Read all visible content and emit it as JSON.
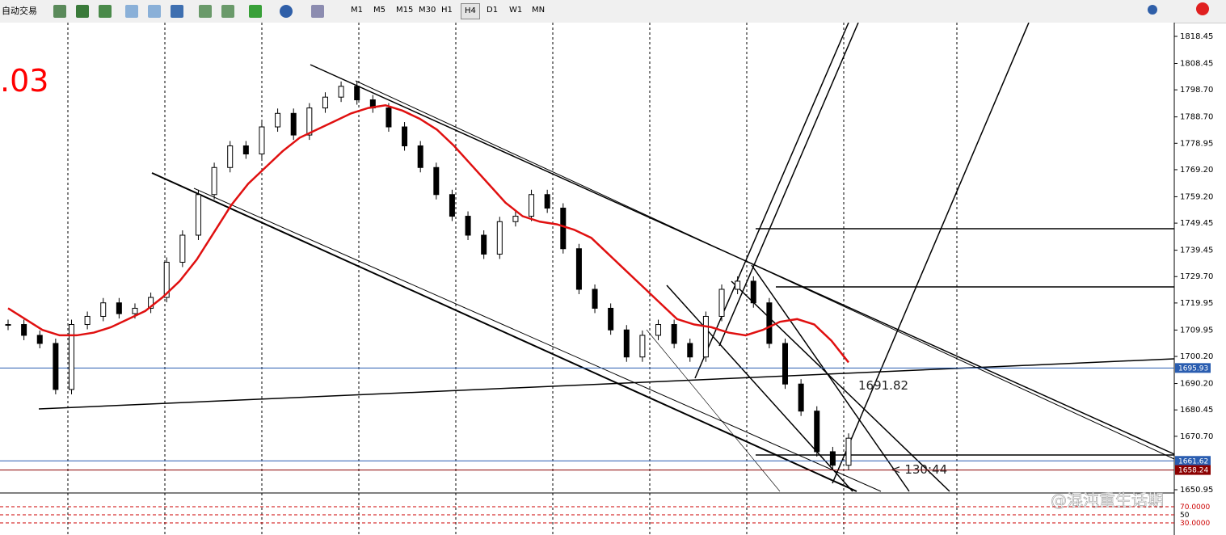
{
  "toolbar": {
    "autotrade": "自动交易",
    "timeframes": [
      "M1",
      "M5",
      "M15",
      "M30",
      "H1",
      "H4",
      "D1",
      "W1",
      "MN"
    ],
    "active": "H4"
  },
  "chart": {
    "ylim": [
      1650.95,
      1818.45
    ],
    "price_ticks": [
      {
        "value": 1818.45,
        "label": "1818.45"
      },
      {
        "value": 1808.45,
        "label": "1808.45"
      },
      {
        "value": 1798.7,
        "label": "1798.70"
      },
      {
        "value": 1788.7,
        "label": "1788.70"
      },
      {
        "value": 1778.95,
        "label": "1778.95"
      },
      {
        "value": 1769.2,
        "label": "1769.20"
      },
      {
        "value": 1759.2,
        "label": "1759.20"
      },
      {
        "value": 1749.45,
        "label": "1749.45"
      },
      {
        "value": 1739.45,
        "label": "1739.45"
      },
      {
        "value": 1729.7,
        "label": "1729.70"
      },
      {
        "value": 1719.95,
        "label": "1719.95"
      },
      {
        "value": 1709.95,
        "label": "1709.95"
      },
      {
        "value": 1700.2,
        "label": "1700.20"
      },
      {
        "value": 1690.2,
        "label": "1690.20"
      },
      {
        "value": 1680.45,
        "label": "1680.45"
      },
      {
        "value": 1670.7,
        "label": "1670.70"
      },
      {
        "value": 1650.95,
        "label": "1650.95"
      }
    ],
    "levels": [
      {
        "value": 1695.93,
        "label": "1695.93",
        "color": "#2a5db0"
      },
      {
        "value": 1661.62,
        "label": "1661.62",
        "color": "#2a5db0"
      },
      {
        "value": 1658.24,
        "label": "1658.24",
        "color": "#8b0000"
      }
    ],
    "closes": [
      1712,
      1708,
      1705,
      1688,
      1712,
      1715,
      1720,
      1716,
      1718,
      1722,
      1735,
      1745,
      1760,
      1770,
      1778,
      1775,
      1785,
      1790,
      1782,
      1792,
      1796,
      1800,
      1795,
      1792,
      1785,
      1778,
      1770,
      1760,
      1752,
      1745,
      1738,
      1750,
      1752,
      1760,
      1755,
      1740,
      1725,
      1718,
      1710,
      1700,
      1708,
      1712,
      1705,
      1700,
      1715,
      1725,
      1728,
      1720,
      1705,
      1690,
      1680,
      1665,
      1660,
      1670
    ],
    "ma": [
      1718,
      1714,
      1710,
      1708,
      1708,
      1709,
      1711,
      1714,
      1717,
      1722,
      1728,
      1736,
      1746,
      1756,
      1764,
      1770,
      1776,
      1781,
      1784,
      1787,
      1790,
      1792,
      1793,
      1791,
      1788,
      1784,
      1778,
      1771,
      1764,
      1757,
      1752,
      1750,
      1749,
      1747,
      1744,
      1738,
      1732,
      1726,
      1720,
      1714,
      1712,
      1711,
      1709,
      1708,
      1710,
      1713,
      1714,
      1712,
      1706,
      1698
    ],
    "annotations": {
      "left_value": ".03",
      "level_label": "1691.82",
      "timer": "< 130:44"
    },
    "indicator": {
      "ticks": [
        {
          "value": 70,
          "label": "70.0000"
        },
        {
          "value": 50,
          "label": "50"
        },
        {
          "value": 30,
          "label": "30.0000"
        }
      ]
    },
    "watermark": "@混沌重生话期"
  }
}
